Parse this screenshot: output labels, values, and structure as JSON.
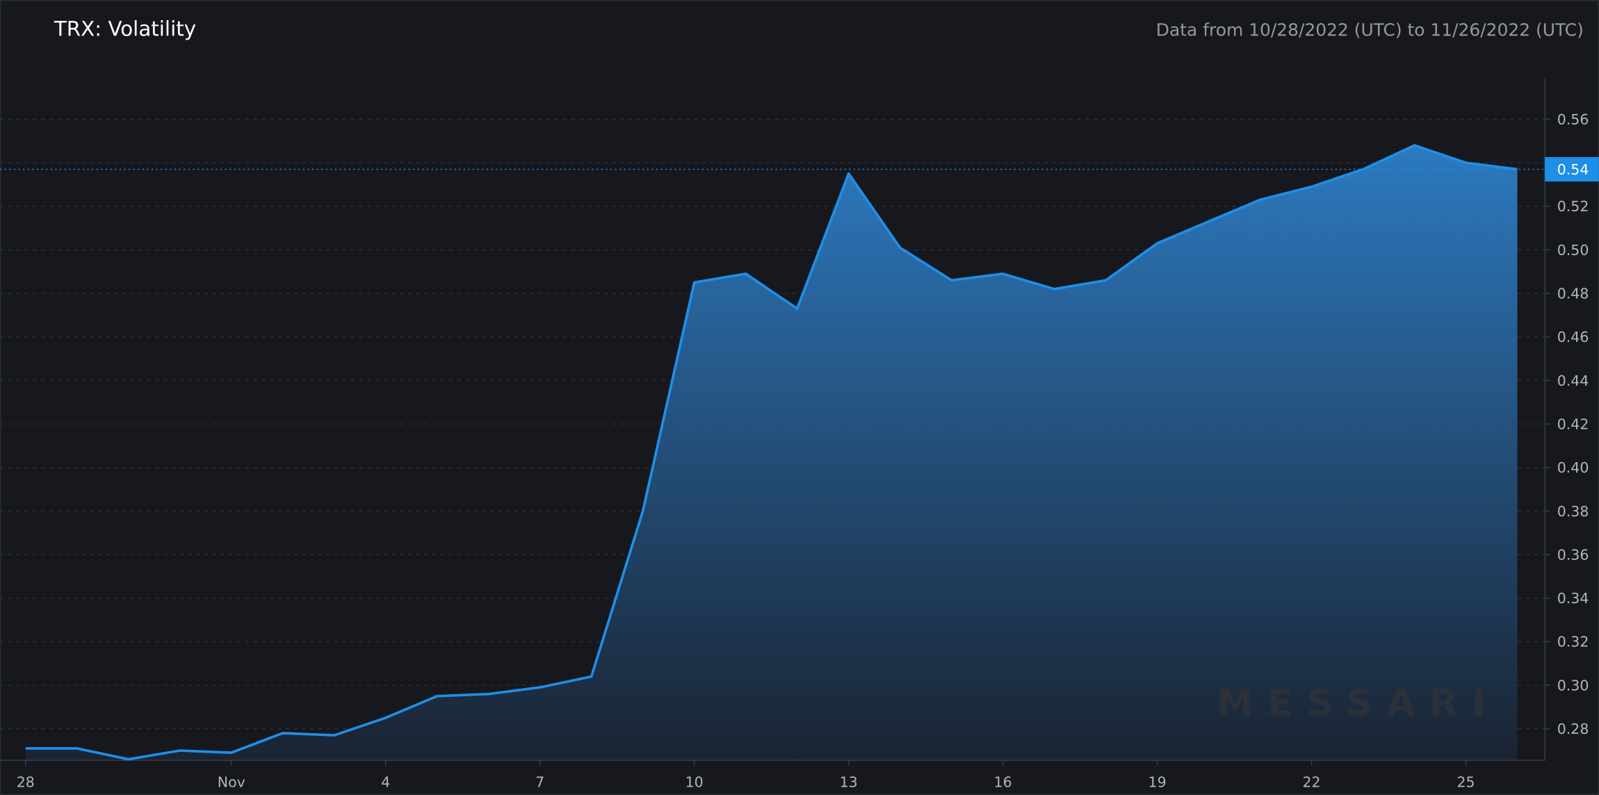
{
  "chart_data": {
    "type": "area",
    "title": "TRX: Volatility",
    "subtitle": "Data from 10/28/2022 (UTC) to 11/26/2022 (UTC)",
    "watermark": "MESSARI",
    "x": [
      "2022-10-28",
      "2022-10-29",
      "2022-10-30",
      "2022-10-31",
      "2022-11-01",
      "2022-11-02",
      "2022-11-03",
      "2022-11-04",
      "2022-11-05",
      "2022-11-06",
      "2022-11-07",
      "2022-11-08",
      "2022-11-09",
      "2022-11-10",
      "2022-11-11",
      "2022-11-12",
      "2022-11-13",
      "2022-11-14",
      "2022-11-15",
      "2022-11-16",
      "2022-11-17",
      "2022-11-18",
      "2022-11-19",
      "2022-11-20",
      "2022-11-21",
      "2022-11-22",
      "2022-11-23",
      "2022-11-24",
      "2022-11-25",
      "2022-11-26"
    ],
    "values": [
      0.271,
      0.271,
      0.266,
      0.27,
      0.269,
      0.278,
      0.277,
      0.285,
      0.295,
      0.296,
      0.299,
      0.304,
      0.38,
      0.485,
      0.489,
      0.473,
      0.535,
      0.501,
      0.486,
      0.489,
      0.482,
      0.486,
      0.503,
      0.513,
      0.523,
      0.529,
      0.537,
      0.548,
      0.54,
      0.537
    ],
    "current_label": "0.54",
    "color": "#1e8fe8",
    "xlim": [
      "2022-10-28",
      "2022-11-26"
    ],
    "xticks": [
      {
        "value": "2022-10-28",
        "label": "28"
      },
      {
        "value": "2022-11-01",
        "label": "Nov"
      },
      {
        "value": "2022-11-04",
        "label": "4"
      },
      {
        "value": "2022-11-07",
        "label": "7"
      },
      {
        "value": "2022-11-10",
        "label": "10"
      },
      {
        "value": "2022-11-13",
        "label": "13"
      },
      {
        "value": "2022-11-16",
        "label": "16"
      },
      {
        "value": "2022-11-19",
        "label": "19"
      },
      {
        "value": "2022-11-22",
        "label": "22"
      },
      {
        "value": "2022-11-25",
        "label": "25"
      }
    ],
    "ylim": [
      0.2655,
      0.5787
    ],
    "yticks": [
      0.28,
      {
        "value": 0.3,
        "label": "0.30"
      },
      0.32,
      0.34,
      0.36,
      0.38,
      {
        "value": 0.4,
        "label": "0.40"
      },
      0.42,
      0.44,
      0.46,
      0.48,
      {
        "value": 0.5,
        "label": "0.50"
      },
      0.52,
      0.54,
      0.56
    ],
    "grid": true
  }
}
